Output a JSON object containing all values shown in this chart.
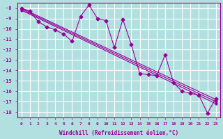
{
  "xlabel": "Windchill (Refroidissement éolien,°C)",
  "background_color": "#b2e0e0",
  "grid_color": "#ffffff",
  "line_color": "#990099",
  "xlim": [
    -0.5,
    23.5
  ],
  "ylim": [
    -18.5,
    -7.5
  ],
  "yticks": [
    -8,
    -9,
    -10,
    -11,
    -12,
    -13,
    -14,
    -15,
    -16,
    -17,
    -18
  ],
  "xticks": [
    0,
    1,
    2,
    3,
    4,
    5,
    6,
    7,
    8,
    9,
    10,
    11,
    12,
    13,
    14,
    15,
    16,
    17,
    18,
    19,
    20,
    21,
    22,
    23
  ],
  "main_x": [
    0,
    1,
    2,
    3,
    4,
    5,
    6,
    7,
    8,
    9,
    10,
    11,
    12,
    13,
    14,
    15,
    16,
    17,
    18,
    19,
    20,
    21,
    22,
    23
  ],
  "main_y": [
    -8.0,
    -8.3,
    -9.3,
    -9.8,
    -10.1,
    -10.5,
    -11.2,
    -8.8,
    -7.7,
    -9.0,
    -9.2,
    -11.8,
    -9.1,
    -11.5,
    -14.3,
    -14.4,
    -14.5,
    -12.5,
    -15.2,
    -16.0,
    -16.2,
    -16.4,
    -18.1,
    -16.7
  ]
}
